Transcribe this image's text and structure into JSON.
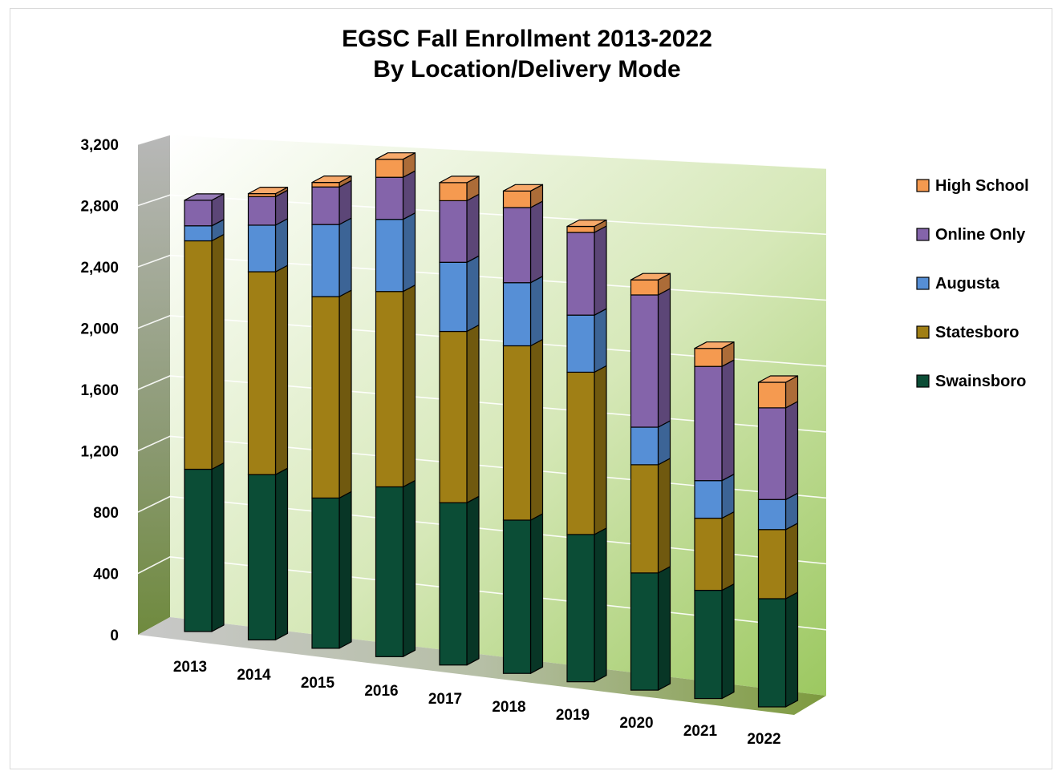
{
  "chart_data": {
    "type": "bar",
    "stacked": true,
    "three_d": true,
    "title_line1": "EGSC Fall Enrollment 2013-2022",
    "title_line2": "By Location/Delivery Mode",
    "categories": [
      "2013",
      "2014",
      "2015",
      "2016",
      "2017",
      "2018",
      "2019",
      "2020",
      "2021",
      "2022"
    ],
    "y_ticks": [
      "0",
      "400",
      "800",
      "1,200",
      "1,600",
      "2,000",
      "2,400",
      "2,800",
      "3,200"
    ],
    "ylim": [
      0,
      3200
    ],
    "grid": true,
    "legend_position": "right",
    "series": [
      {
        "name": "Swainsboro",
        "color": "#0b4d36",
        "values": [
          1080,
          1100,
          1000,
          1130,
          1080,
          1020,
          980,
          780,
          720,
          720
        ]
      },
      {
        "name": "Statesboro",
        "color": "#a07f15",
        "values": [
          1520,
          1350,
          1340,
          1300,
          1140,
          1160,
          1080,
          720,
          480,
          460
        ]
      },
      {
        "name": "Augusta",
        "color": "#568fd6",
        "values": [
          100,
          310,
          480,
          480,
          460,
          420,
          380,
          250,
          250,
          200
        ]
      },
      {
        "name": "Online Only",
        "color": "#8464aa",
        "values": [
          170,
          190,
          250,
          280,
          410,
          500,
          550,
          880,
          760,
          610
        ]
      },
      {
        "name": "High School",
        "color": "#f59a50",
        "values": [
          0,
          20,
          30,
          120,
          120,
          110,
          40,
          100,
          120,
          170
        ]
      }
    ]
  }
}
